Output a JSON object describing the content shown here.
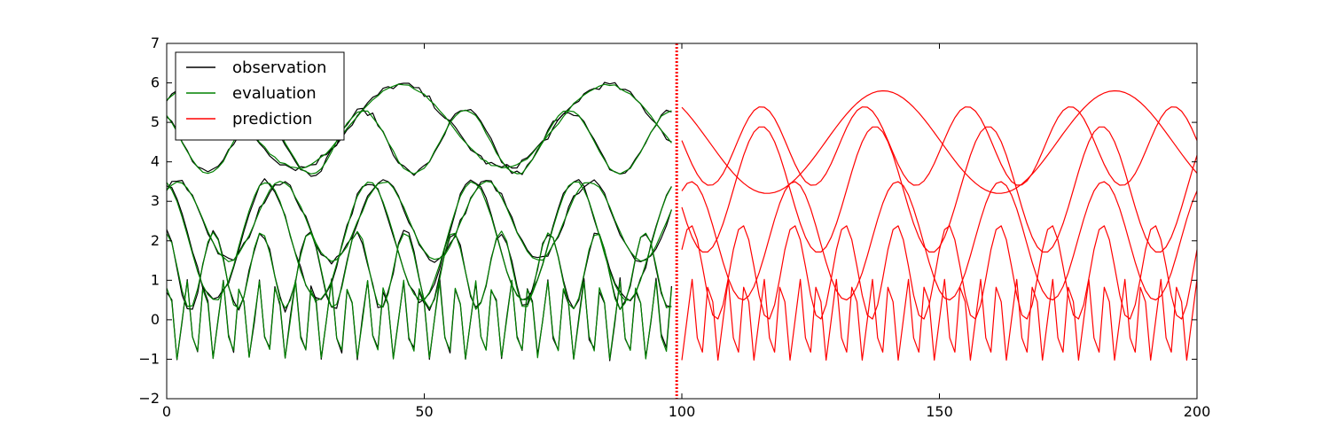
{
  "chart_data": {
    "type": "line",
    "title": "",
    "xlabel": "",
    "ylabel": "",
    "xlim": [
      0,
      200
    ],
    "ylim": [
      -2,
      7
    ],
    "xticks": [
      0,
      50,
      100,
      150,
      200
    ],
    "yticks": [
      -2,
      -1,
      0,
      1,
      2,
      3,
      4,
      5,
      6,
      7
    ],
    "xtick_labels": [
      "0",
      "50",
      "100",
      "150",
      "200"
    ],
    "ytick_labels": [
      "−2",
      "−1",
      "0",
      "1",
      "2",
      "3",
      "4",
      "5",
      "6",
      "7"
    ],
    "grid": false,
    "legend_position": "top-left",
    "divider_x": 99,
    "divider_color": "#ff0000",
    "legend": [
      {
        "label": "observation",
        "color": "#000000"
      },
      {
        "label": "evaluation",
        "color": "#008000"
      },
      {
        "label": "prediction",
        "color": "#ff0000"
      }
    ],
    "series_groups": [
      {
        "name": "observation",
        "color": "#000000",
        "x_range": [
          0,
          98
        ],
        "curves": [
          {
            "offset": 0,
            "amplitude": 1.0,
            "period": 3.5,
            "phase": 0.9
          },
          {
            "offset": 1.25,
            "amplitude": 0.97,
            "period": 9.3,
            "phase": 1.7
          },
          {
            "offset": 2.0,
            "amplitude": 1.5,
            "period": 20.0,
            "phase": 1.78
          },
          {
            "offset": 2.5,
            "amplitude": 1.0,
            "period": 20.0,
            "phase": 0.9
          },
          {
            "offset": 4.5,
            "amplitude": 0.8,
            "period": 20.0,
            "phase": 2.2
          },
          {
            "offset": 4.9,
            "amplitude": 1.05,
            "period": 40.0,
            "phase": 0.71
          }
        ]
      },
      {
        "name": "evaluation",
        "color": "#008000",
        "x_range": [
          0,
          98
        ],
        "curves": [
          {
            "offset": 0,
            "amplitude": 1.0,
            "period": 3.5,
            "phase": 0.9
          },
          {
            "offset": 1.25,
            "amplitude": 0.97,
            "period": 9.3,
            "phase": 1.7
          },
          {
            "offset": 2.0,
            "amplitude": 1.5,
            "period": 20.0,
            "phase": 1.78
          },
          {
            "offset": 2.5,
            "amplitude": 1.0,
            "period": 20.0,
            "phase": 0.9
          },
          {
            "offset": 4.5,
            "amplitude": 0.8,
            "period": 20.0,
            "phase": 2.2
          },
          {
            "offset": 4.9,
            "amplitude": 1.05,
            "period": 40.0,
            "phase": 0.71
          }
        ]
      },
      {
        "name": "prediction",
        "color": "#ff0000",
        "x_range": [
          100,
          200
        ],
        "curves": [
          {
            "offset": 0,
            "amplitude": 1.05,
            "period": 3.5,
            "phase": 0.9
          },
          {
            "offset": 1.2,
            "amplitude": 1.2,
            "period": 10.0,
            "phase": 0.5
          },
          {
            "offset": 2.0,
            "amplitude": 1.5,
            "period": 20.0,
            "phase": 1.0
          },
          {
            "offset": 3.3,
            "amplitude": 1.6,
            "period": 22.0,
            "phase": 0.0
          },
          {
            "offset": 4.4,
            "amplitude": 1.0,
            "period": 20.0,
            "phase": 3.0
          },
          {
            "offset": 4.5,
            "amplitude": 1.3,
            "period": 45.0,
            "phase": 1.0
          }
        ]
      }
    ]
  }
}
